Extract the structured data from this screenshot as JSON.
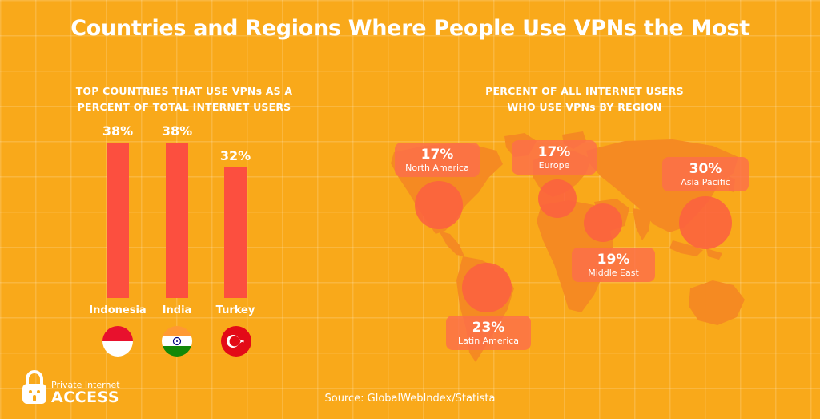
{
  "title": "Countries and Regions Where People Use VPNs the Most",
  "chart_data": [
    {
      "type": "bar",
      "title": "TOP COUNTRIES THAT USE VPNs AS A\nPERCENT OF TOTAL INTERNET USERS",
      "categories": [
        "Indonesia",
        "India",
        "Turkey"
      ],
      "values": [
        38,
        38,
        32
      ],
      "value_labels": [
        "38%",
        "38%",
        "32%"
      ],
      "ylim": [
        0,
        38
      ],
      "bar_color": "#fc4f3f"
    },
    {
      "type": "map",
      "title": "PERCENT OF ALL INTERNET USERS\nWHO USE VPNs BY REGION",
      "regions": [
        {
          "name": "North America",
          "label": "17%",
          "value": 17
        },
        {
          "name": "Europe",
          "label": "17%",
          "value": 17
        },
        {
          "name": "Asia Pacific",
          "label": "30%",
          "value": 30
        },
        {
          "name": "Middle East",
          "label": "19%",
          "value": 19
        },
        {
          "name": "Latin America",
          "label": "23%",
          "value": 23
        }
      ]
    }
  ],
  "logo": {
    "line1": "Private Internet",
    "line2": "ACCESS"
  },
  "source": "Source: GlobalWebIndex/Statista",
  "colors": {
    "background": "#f9a91a",
    "bar": "#fc4f3f",
    "map": "#f58a22",
    "bubble": "#fc5f41"
  }
}
